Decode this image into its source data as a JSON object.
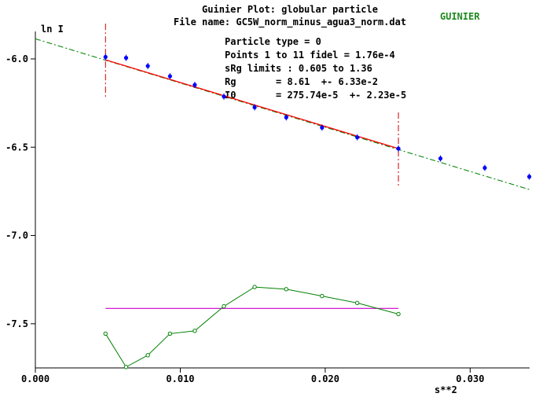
{
  "header": {
    "title": "Guinier Plot: globular particle",
    "file_line": "File name: GC5W_norm_minus_agua3_norm.dat",
    "mode_badge": "GUINIER"
  },
  "info": {
    "particle_type": "Particle type = 0",
    "points": "Points 1 to 11 fidel = 1.76e-4",
    "srg_limits": "sRg limits : 0.605 to 1.36",
    "rg": "Rg       = 8.61  +- 6.33e-2",
    "i0": "I0       = 275.74e-5  +- 2.23e-5"
  },
  "colors": {
    "data_points": "#0000ff",
    "fit_line": "#ff0000",
    "extrapolation": "#008000",
    "fit_limits": "#cc0000",
    "residuals": "#008000",
    "residual_baseline": "#cc00cc",
    "axes": "#000000",
    "badge": "#1e8a1e"
  },
  "chart_data": {
    "type": "scatter",
    "xlabel": "s**2",
    "ylabel": "ln I",
    "xlim": [
      0.0,
      0.0341
    ],
    "ylim": [
      -7.75,
      -5.88
    ],
    "x_ticks": [
      {
        "value": 0.0,
        "label": "0.000"
      },
      {
        "value": 0.01,
        "label": "0.010"
      },
      {
        "value": 0.02,
        "label": "0.020"
      },
      {
        "value": 0.03,
        "label": "0.030"
      }
    ],
    "y_ticks": [
      {
        "value": -6.0,
        "label": "-6.0"
      },
      {
        "value": -6.5,
        "label": "-6.5"
      },
      {
        "value": -7.0,
        "label": "-7.0"
      },
      {
        "value": -7.5,
        "label": "-7.5"
      }
    ],
    "data_points": {
      "x": [
        0.00484,
        0.00626,
        0.00776,
        0.00929,
        0.011,
        0.01301,
        0.01513,
        0.01731,
        0.01978,
        0.02221,
        0.02505,
        0.02795,
        0.03101,
        0.03408
      ],
      "y": [
        -5.989,
        -5.994,
        -6.04,
        -6.098,
        -6.147,
        -6.213,
        -6.274,
        -6.331,
        -6.389,
        -6.444,
        -6.508,
        -6.564,
        -6.617,
        -6.667
      ]
    },
    "fit_line": {
      "x": [
        0.00484,
        0.02505
      ],
      "y": [
        -6.005,
        -6.508
      ]
    },
    "extrapolation": {
      "x": [
        0.0,
        0.0341
      ],
      "y": [
        -5.886,
        -6.74
      ]
    },
    "fit_limits": {
      "x": [
        0.00484,
        0.02505
      ],
      "y_span": [
        -5.67,
        -6.22
      ]
    },
    "residuals": {
      "x": [
        0.00484,
        0.00626,
        0.00776,
        0.00929,
        0.011,
        0.01301,
        0.01513,
        0.01731,
        0.01978,
        0.02221,
        0.02505
      ],
      "y": [
        -7.556,
        -7.745,
        -7.678,
        -7.556,
        -7.54,
        -7.401,
        -7.292,
        -7.304,
        -7.343,
        -7.382,
        -7.445
      ]
    },
    "residual_baseline": {
      "x": [
        0.00484,
        0.02505
      ],
      "y": -7.413
    },
    "grid": false
  }
}
